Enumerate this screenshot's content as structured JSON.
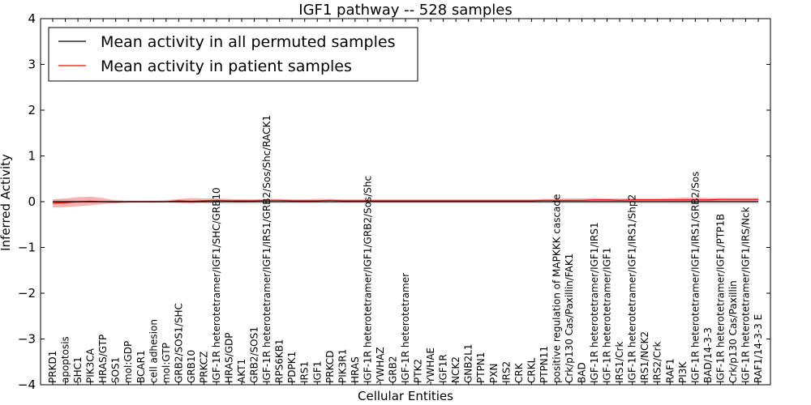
{
  "chart_data": {
    "type": "line",
    "title": "IGF1 pathway -- 528 samples",
    "xlabel": "Cellular Entities",
    "ylabel": "Inferred Activity",
    "ylim": [
      -4,
      4
    ],
    "yticks": [
      4,
      3,
      2,
      1,
      0,
      -1,
      -2,
      -3,
      -4
    ],
    "ytick_labels": [
      "4",
      "3",
      "2",
      "1",
      "0",
      "−1",
      "−2",
      "−3",
      "−4"
    ],
    "legend_position": "top-left",
    "categories": [
      "PRKD1",
      "apoptosis",
      "SHC1",
      "PIK3CA",
      "HRAS/GTP",
      "SOS1",
      "mol:GDP",
      "BCAR1",
      "cell adhesion",
      "mol:GTP",
      "GRB2/SOS1/SHC",
      "GRB10",
      "PRKCZ",
      "IGF-1R heterotetramer/IGF1/SHC/GRB10",
      "HRAS/GDP",
      "AKT1",
      "GRB2/SOS1",
      "IGF-1R heterotetramer/IGF1/IRS1/GRB2/Sos/Shc/RACK1",
      "RPS6KB1",
      "PDPK1",
      "IRS1",
      "IGF1",
      "PRKCD",
      "PIK3R1",
      "HRAS",
      "IGF-1R heterotetramer/IGF1/GRB2/Sos/Shc",
      "YWHAZ",
      "GRB2",
      "IGF-1R heterotetramer",
      "PTK2",
      "YWHAE",
      "IGF1R",
      "NCK2",
      "GNB2L1",
      "PTPN1",
      "PXN",
      "IRS2",
      "CRK",
      "CRKL",
      "PTPN11",
      "positive regulation of MAPKKK cascade",
      "Crk/p130 Cas/Paxillin/FAK1",
      "BAD",
      "IGF-1R heterotetramer/IGF1/IRS1",
      "IGF-1R heterotetramer/IGF1",
      "IRS1/Crk",
      "IGF-1R heterotetramer/IGF1/IRS1/Shp2",
      "IRS1/NCK2",
      "IRS2/Crk",
      "RAF1",
      "PI3K",
      "IGF-1R heterotetramer/IGF1/IRS1/GRB2/Sos",
      "BAD/14-3-3",
      "IGF-1R heterotetramer/IGF1/PTP1B",
      "Crk/p130 Cas/Paxillin",
      "IGF-1R heterotetramer/IGF1/IRS/Nck",
      "RAF1/14-3-3 E"
    ],
    "series": [
      {
        "name": "Mean activity in all permuted samples",
        "color": "#000000",
        "values": [
          0,
          0,
          0,
          0,
          0,
          0,
          0,
          0,
          0,
          0,
          0,
          0,
          0,
          0,
          0,
          0,
          0,
          0,
          0,
          0,
          0,
          0,
          0,
          0,
          0,
          0,
          0,
          0,
          0,
          0,
          0,
          0,
          0,
          0,
          0,
          0,
          0,
          0,
          0,
          0,
          0,
          0,
          0,
          0,
          0,
          0,
          0,
          0,
          0,
          0,
          0,
          0,
          0,
          0,
          0,
          0,
          0
        ],
        "band_lower": [
          -0.05,
          -0.05,
          -0.04,
          -0.04,
          -0.03,
          -0.03,
          -0.03,
          -0.03,
          -0.03,
          -0.03,
          -0.04,
          -0.04,
          -0.04,
          -0.05,
          -0.05,
          -0.06,
          -0.05,
          -0.04,
          -0.04,
          -0.04,
          -0.04,
          -0.04,
          -0.04,
          -0.04,
          -0.04,
          -0.04,
          -0.04,
          -0.04,
          -0.04,
          -0.04,
          -0.04,
          -0.04,
          -0.04,
          -0.04,
          -0.04,
          -0.04,
          -0.04,
          -0.04,
          -0.04,
          -0.04,
          -0.04,
          -0.04,
          -0.04,
          -0.05,
          -0.05,
          -0.05,
          -0.05,
          -0.05,
          -0.05,
          -0.05,
          -0.06,
          -0.06,
          -0.06,
          -0.06,
          -0.06,
          -0.06,
          -0.06
        ],
        "band_upper": [
          0.05,
          0.05,
          0.04,
          0.04,
          0.03,
          0.03,
          0.03,
          0.03,
          0.03,
          0.03,
          0.04,
          0.04,
          0.04,
          0.05,
          0.05,
          0.05,
          0.05,
          0.04,
          0.04,
          0.04,
          0.04,
          0.04,
          0.04,
          0.04,
          0.04,
          0.04,
          0.04,
          0.04,
          0.04,
          0.04,
          0.04,
          0.04,
          0.04,
          0.04,
          0.04,
          0.04,
          0.04,
          0.04,
          0.04,
          0.04,
          0.04,
          0.04,
          0.04,
          0.05,
          0.05,
          0.05,
          0.05,
          0.05,
          0.05,
          0.05,
          0.06,
          0.06,
          0.06,
          0.06,
          0.06,
          0.06,
          0.06
        ]
      },
      {
        "name": "Mean activity in patient samples",
        "color": "#ff0000",
        "values": [
          -0.03,
          -0.02,
          0.0,
          0.01,
          0.0,
          -0.01,
          0.0,
          0.0,
          0.0,
          0.0,
          0.02,
          0.01,
          0.02,
          0.03,
          0.02,
          0.02,
          0.02,
          0.03,
          0.03,
          0.02,
          0.02,
          0.02,
          0.03,
          0.02,
          0.02,
          0.02,
          0.02,
          0.02,
          0.02,
          0.02,
          0.02,
          0.02,
          0.02,
          0.02,
          0.02,
          0.02,
          0.02,
          0.02,
          0.02,
          0.03,
          0.03,
          0.03,
          0.03,
          0.04,
          0.04,
          0.03,
          0.04,
          0.04,
          0.04,
          0.04,
          0.04,
          0.04,
          0.04,
          0.05,
          0.05,
          0.05,
          0.05
        ],
        "band_lower": [
          -0.13,
          -0.12,
          -0.1,
          -0.08,
          -0.05,
          -0.03,
          -0.02,
          -0.02,
          -0.02,
          -0.01,
          -0.02,
          -0.03,
          -0.02,
          -0.02,
          -0.01,
          -0.02,
          -0.01,
          -0.01,
          -0.01,
          -0.01,
          -0.01,
          -0.01,
          -0.01,
          -0.01,
          -0.01,
          -0.01,
          -0.01,
          -0.01,
          -0.01,
          -0.01,
          -0.01,
          -0.01,
          -0.01,
          -0.01,
          -0.01,
          -0.01,
          -0.01,
          -0.01,
          -0.01,
          0.0,
          0.0,
          0.0,
          0.0,
          0.0,
          0.0,
          0.0,
          0.0,
          0.0,
          0.0,
          0.0,
          0.0,
          0.0,
          0.0,
          0.0,
          0.0,
          0.0,
          0.0
        ],
        "band_upper": [
          0.05,
          0.07,
          0.1,
          0.11,
          0.08,
          0.03,
          0.02,
          0.02,
          0.02,
          0.03,
          0.06,
          0.08,
          0.07,
          0.07,
          0.06,
          0.05,
          0.05,
          0.06,
          0.06,
          0.05,
          0.05,
          0.06,
          0.06,
          0.05,
          0.05,
          0.05,
          0.05,
          0.05,
          0.05,
          0.05,
          0.05,
          0.05,
          0.05,
          0.05,
          0.05,
          0.05,
          0.05,
          0.05,
          0.05,
          0.06,
          0.06,
          0.07,
          0.07,
          0.08,
          0.07,
          0.07,
          0.07,
          0.07,
          0.07,
          0.08,
          0.09,
          0.09,
          0.08,
          0.08,
          0.08,
          0.08,
          0.08
        ]
      }
    ]
  }
}
